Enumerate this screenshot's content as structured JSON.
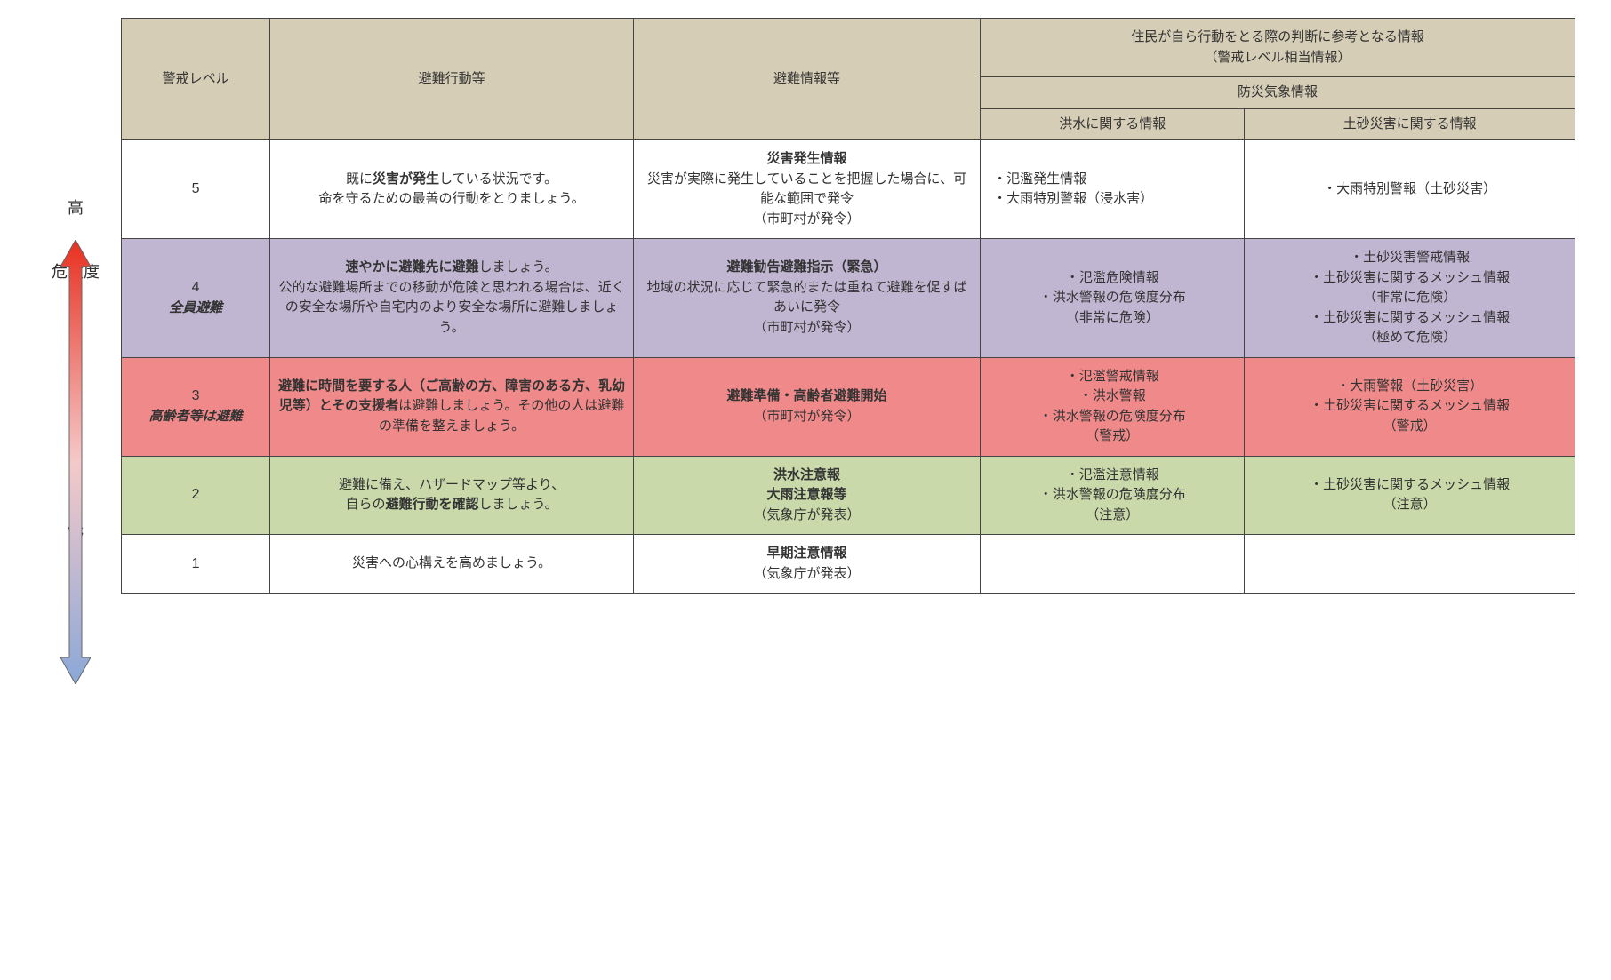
{
  "colors": {
    "header_bg": "#d6cdb6",
    "row5_bg": "#ffffff",
    "row4_bg": "#c1b6d1",
    "row3_bg": "#f08a8a",
    "row2_bg": "#c9d9aa",
    "row1_bg": "#ffffff",
    "arrow_top": "#e83020",
    "arrow_bottom": "#8aa8d8",
    "border": "#444444"
  },
  "side": {
    "high": "高",
    "mid": "危険度",
    "low": "低"
  },
  "header": {
    "col1": "警戒レベル",
    "col2": "避難行動等",
    "col3": "避難情報等",
    "col45_top1": "住民が自ら行動をとる際の判断に参考となる情報",
    "col45_top2": "（警戒レベル相当情報）",
    "col45_mid": "防災気象情報",
    "col4": "洪水に関する情報",
    "col5": "土砂災害に関する情報"
  },
  "rows": {
    "r5": {
      "level": "5",
      "action_pre": "既に",
      "action_bold": "災害が発生",
      "action_post": "している状況です。\n命を守るための最善の行動をとりましょう。",
      "info_bold": "災害発生情報",
      "info_text": "災害が実際に発生していることを把握した場合に、可能な範囲で発令\n（市町村が発令）",
      "flood": "・氾濫発生情報\n・大雨特別警報（浸水害）",
      "land": "・大雨特別警報（土砂災害）"
    },
    "r4": {
      "level": "4",
      "level_label": "全員避難",
      "action_bold": "速やかに避難先に避難",
      "action_post": "しましょう。\n公的な避難場所までの移動が危険と思われる場合は、近くの安全な場所や自宅内のより安全な場所に避難しましょう。",
      "info_bold": "避難勧告避難指示（緊急）",
      "info_text": "地域の状況に応じて緊急的または重ねて避難を促すばあいに発令\n（市町村が発令）",
      "flood": "・氾濫危険情報\n・洪水警報の危険度分布\n（非常に危険）",
      "land": "・土砂災害警戒情報\n・土砂災害に関するメッシュ情報\n（非常に危険）\n・土砂災害に関するメッシュ情報\n（極めて危険）"
    },
    "r3": {
      "level": "3",
      "level_label": "高齢者等は避難",
      "action_bold": "避難に時間を要する人（ご高齢の方、障害のある方、乳幼児等）とその支援者",
      "action_post": "は避難しましょう。その他の人は避難の準備を整えましょう。",
      "info_bold": "避難準備・高齢者避難開始",
      "info_text": "（市町村が発令）",
      "flood": "・氾濫警戒情報\n・洪水警報\n・洪水警報の危険度分布\n（警戒）",
      "land": "・大雨警報（土砂災害）\n・土砂災害に関するメッシュ情報\n（警戒）"
    },
    "r2": {
      "level": "2",
      "action_pre": "避難に備え、ハザードマップ等より、\n自らの",
      "action_bold": "避難行動を確認",
      "action_post": "しましょう。",
      "info_bold": "洪水注意報\n大雨注意報等",
      "info_text": "（気象庁が発表）",
      "flood": "・氾濫注意情報\n・洪水警報の危険度分布\n（注意）",
      "land": "・土砂災害に関するメッシュ情報\n（注意）"
    },
    "r1": {
      "level": "1",
      "action": "災害への心構えを高めましょう。",
      "info_bold": "早期注意情報",
      "info_text": "（気象庁が発表）",
      "flood": "",
      "land": ""
    }
  }
}
